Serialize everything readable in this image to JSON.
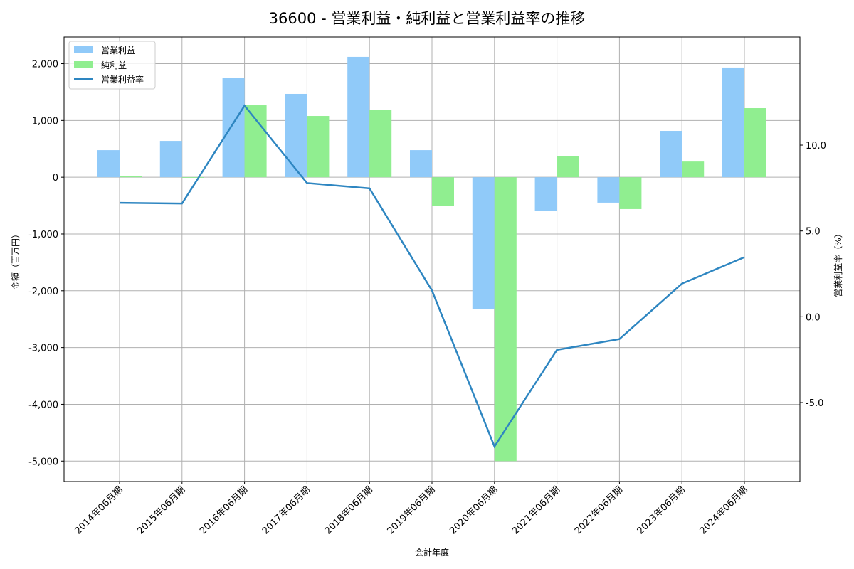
{
  "chart_data": {
    "type": "bar",
    "title": "36600 - 営業利益・純利益と営業利益率の推移",
    "xlabel": "会計年度",
    "ylabel": "金額（百万円）",
    "y2label": "営業利益率（%）",
    "categories": [
      "2014年06月期",
      "2015年06月期",
      "2016年06月期",
      "2017年06月期",
      "2018年06月期",
      "2019年06月期",
      "2020年06月期",
      "2021年06月期",
      "2022年06月期",
      "2023年06月期",
      "2024年06月期"
    ],
    "series": [
      {
        "name": "営業利益",
        "type": "bar",
        "axis": "left",
        "color": "#90CAF9",
        "values": [
          477,
          640,
          1744,
          1468,
          2120,
          477,
          -2317,
          -598,
          -448,
          816,
          1932
        ]
      },
      {
        "name": "純利益",
        "type": "bar",
        "axis": "left",
        "color": "#90EE90",
        "values": [
          15,
          -10,
          1267,
          1079,
          1180,
          -511,
          -5000,
          376,
          -561,
          276,
          1217
        ]
      },
      {
        "name": "営業利益率",
        "type": "line",
        "axis": "right",
        "color": "#2E86C1",
        "values": [
          6.64,
          6.6,
          12.3,
          7.79,
          7.48,
          1.53,
          -7.56,
          -1.93,
          -1.3,
          1.93,
          3.47
        ]
      }
    ],
    "ylim": [
      -5360,
      2470
    ],
    "y2lim": [
      -9.6,
      16.3
    ],
    "yticks": [
      -5000,
      -4000,
      -3000,
      -2000,
      -1000,
      0,
      1000,
      2000
    ],
    "ytick_labels": [
      "-5,000",
      "-4,000",
      "-3,000",
      "-2,000",
      "-1,000",
      "0",
      "1,000",
      "2,000"
    ],
    "y2ticks": [
      -5.0,
      0.0,
      5.0,
      10.0
    ],
    "y2tick_labels": [
      "-5.0",
      "0.0",
      "5.0",
      "10.0"
    ],
    "grid": true,
    "legend_position": "upper left"
  }
}
